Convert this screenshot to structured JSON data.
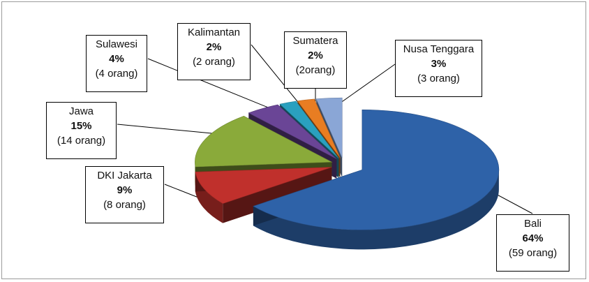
{
  "chart_data": {
    "type": "pie",
    "title": "",
    "slices": [
      {
        "label": "Bali",
        "percent": 64,
        "count_label": "(59 orang)",
        "count": 59,
        "color": "#2e62a8"
      },
      {
        "label": "DKI Jakarta",
        "percent": 9,
        "count_label": "(8 orang)",
        "count": 8,
        "color": "#c0302c"
      },
      {
        "label": "Jawa",
        "percent": 15,
        "count_label": "(14 orang)",
        "count": 14,
        "color": "#8aaa3a"
      },
      {
        "label": "Sulawesi",
        "percent": 4,
        "count_label": "(4 orang)",
        "count": 4,
        "color": "#6a4596"
      },
      {
        "label": "Kalimantan",
        "percent": 2,
        "count_label": "(2 orang)",
        "count": 2,
        "color": "#2aa0bf"
      },
      {
        "label": "Sumatera",
        "percent": 2,
        "count_label": "(2orang)",
        "count": 2,
        "color": "#e87d22"
      },
      {
        "label": "Nusa Tenggara",
        "percent": 3,
        "count_label": "(3 orang)",
        "count": 3,
        "color": "#8aa6d6"
      }
    ],
    "legend": "none",
    "style": "3d-exploded",
    "data_labels": "callout-boxes"
  }
}
